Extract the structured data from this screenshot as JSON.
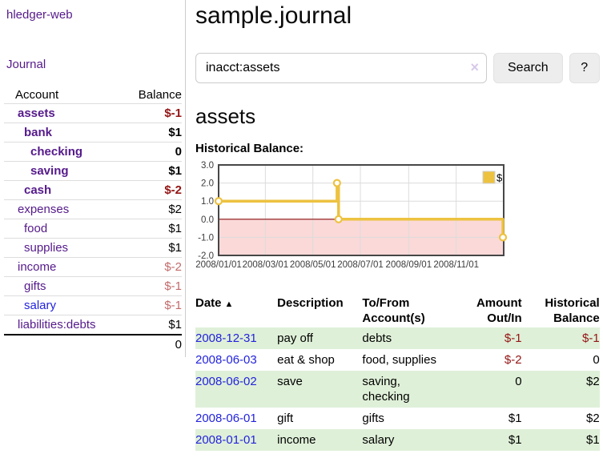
{
  "colors": {
    "purple_link": "#551a8b",
    "blue_link": "#2323dd",
    "negative_strong": "#941414",
    "negative_soft": "#c26b6b",
    "row_stripe_green": "#dff0d8",
    "chart_line_gold": "#edc240"
  },
  "sidebar": {
    "brand": "hledger-web",
    "nav_journal": "Journal",
    "accounts_table": {
      "headers": {
        "account": "Account",
        "balance": "Balance"
      },
      "rows": [
        {
          "name": "assets",
          "balance": "$-1",
          "level": 1,
          "bold": true,
          "neg": "strong"
        },
        {
          "name": "bank",
          "balance": "$1",
          "level": 2,
          "bold": true,
          "neg": null
        },
        {
          "name": "checking",
          "balance": "0",
          "level": 3,
          "bold": true,
          "neg": null
        },
        {
          "name": "saving",
          "balance": "$1",
          "level": 3,
          "bold": true,
          "neg": null
        },
        {
          "name": "cash",
          "balance": "$-2",
          "level": 2,
          "bold": true,
          "neg": "strong"
        },
        {
          "name": "expenses",
          "balance": "$2",
          "level": 1,
          "bold": false,
          "neg": null
        },
        {
          "name": "food",
          "balance": "$1",
          "level": 2,
          "bold": false,
          "neg": null
        },
        {
          "name": "supplies",
          "balance": "$1",
          "level": 2,
          "bold": false,
          "neg": null
        },
        {
          "name": "income",
          "balance": "$-2",
          "level": 1,
          "bold": false,
          "neg": "soft"
        },
        {
          "name": "gifts",
          "balance": "$-1",
          "level": 2,
          "bold": false,
          "neg": "soft"
        },
        {
          "name": "salary",
          "balance": "$-1",
          "level": 2,
          "bold": false,
          "neg": "soft",
          "blue": true
        },
        {
          "name": "liabilities:debts",
          "balance": "$1",
          "level": 1,
          "bold": false,
          "neg": null
        }
      ],
      "total": "0"
    }
  },
  "main": {
    "title": "sample.journal",
    "search": {
      "value": "inacct:assets",
      "clear_icon": "×",
      "search_button": "Search",
      "help_button": "?"
    },
    "account_heading": "assets",
    "chart_title": "Historical Balance:"
  },
  "chart_data": {
    "type": "line",
    "step": true,
    "title": "Historical Balance:",
    "series": [
      {
        "name": "$",
        "color": "#edc240",
        "points": [
          [
            "2008-01-01",
            1
          ],
          [
            "2008-06-01",
            2
          ],
          [
            "2008-06-03",
            0
          ],
          [
            "2008-12-31",
            -1
          ]
        ]
      }
    ],
    "x_domain": [
      "2008-01-01",
      "2009-01-01"
    ],
    "ylim": [
      -2,
      3
    ],
    "yticks": [
      "3.0",
      "2.0",
      "1.0",
      "0.0",
      "-1.0",
      "-2.0"
    ],
    "xticks": [
      "2008/01/01",
      "2008/03/01",
      "2008/05/01",
      "2008/07/01",
      "2008/09/01",
      "2008/11/01"
    ],
    "legend": {
      "label": "$",
      "position": "top-right"
    },
    "grid": true,
    "negative_region_color": "#fbd9d9",
    "zero_line_color": "#8f1010"
  },
  "register": {
    "headers": [
      {
        "label": "Date",
        "align": "left",
        "sort_icon": "▲"
      },
      {
        "label": "Description",
        "align": "left"
      },
      {
        "label": "To/From Account(s)",
        "align": "left"
      },
      {
        "label": "Amount Out/In",
        "align": "right"
      },
      {
        "label": "Historical Balance",
        "align": "right"
      }
    ],
    "rows": [
      {
        "date": "2008-12-31",
        "description": "pay off",
        "accounts": "debts",
        "amount": "$-1",
        "amount_neg": true,
        "balance": "$-1",
        "balance_neg": true
      },
      {
        "date": "2008-06-03",
        "description": "eat & shop",
        "accounts": "food, supplies",
        "amount": "$-2",
        "amount_neg": true,
        "balance": "0",
        "balance_neg": false
      },
      {
        "date": "2008-06-02",
        "description": "save",
        "accounts": "saving, checking",
        "amount": "0",
        "amount_neg": false,
        "balance": "$2",
        "balance_neg": false
      },
      {
        "date": "2008-06-01",
        "description": "gift",
        "accounts": "gifts",
        "amount": "$1",
        "amount_neg": false,
        "balance": "$2",
        "balance_neg": false
      },
      {
        "date": "2008-01-01",
        "description": "income",
        "accounts": "salary",
        "amount": "$1",
        "amount_neg": false,
        "balance": "$1",
        "balance_neg": false
      }
    ]
  }
}
